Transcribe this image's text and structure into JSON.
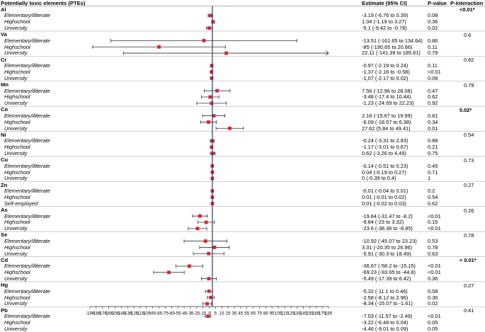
{
  "headers": {
    "elements": "Potentially toxic elements (PTEs)",
    "estimate": "Estimate (95% CI)",
    "pvalue": "P-value",
    "pinteraction": "P-Interaction"
  },
  "chart_data": {
    "type": "forest",
    "xlim": [
      -195,
      185
    ],
    "xticks": [
      "-195",
      "-185",
      "-175",
      "-165",
      "-155",
      "-145",
      "-135",
      "-125",
      "-115",
      "-105",
      "-95",
      "-85",
      "-75",
      "-65",
      "-55",
      "-45",
      "-35",
      "-25",
      "-15",
      "-5",
      "5",
      "15",
      "25",
      "35",
      "45",
      "55",
      "65",
      "75",
      "85",
      "95",
      "105",
      "115",
      "125",
      "135",
      "145",
      "155",
      "165",
      "175",
      "185"
    ],
    "reference_line": 0,
    "marker_color": "#d62728",
    "line_color": "#333333",
    "reference_color": "#1f3a8a",
    "groups": [
      {
        "element": "Al",
        "p_interaction": "<0.01*",
        "bold": true,
        "rows": [
          {
            "level": "Elementary/illiterate",
            "est": -3.19,
            "lo": -6.76,
            "hi": 0.39,
            "estimate_text": "-3.19 (-6.76 to 0.39)",
            "p": "0.08"
          },
          {
            "level": "Highschool",
            "est": 1.04,
            "lo": -1.19,
            "hi": 3.27,
            "estimate_text": "1.04 (-1.19 to 3.27)",
            "p": "0.36"
          },
          {
            "level": "University",
            "est": -5.1,
            "lo": -9.42,
            "hi": -0.78,
            "estimate_text": "-5.1 (-9.42 to -0.78)",
            "p": "0.02"
          }
        ]
      },
      {
        "element": "Va",
        "p_interaction": "0.6",
        "bold": false,
        "rows": [
          {
            "level": "Elementary/illiterate",
            "est": -13.51,
            "lo": -161.65,
            "hi": 134.64,
            "estimate_text": "-13.51 (-161.65 to 134.64)",
            "p": "0.86"
          },
          {
            "level": "Highschool",
            "est": -85,
            "lo": -190.65,
            "hi": 20.66,
            "estimate_text": "-85 (-190.65 to 20.66)",
            "p": "0.11"
          },
          {
            "level": "University",
            "est": 22.11,
            "lo": -141.39,
            "hi": 185.61,
            "estimate_text": "22.11 (-141.39 to 185.61)",
            "p": "0.79"
          }
        ]
      },
      {
        "element": "Cr",
        "p_interaction": "0.82",
        "bold": false,
        "rows": [
          {
            "level": "Elementary/illiterate",
            "est": -0.97,
            "lo": -2.19,
            "hi": 0.24,
            "estimate_text": "-0.97 (-2.19 to 0.24)",
            "p": "0.11"
          },
          {
            "level": "Highschool",
            "est": -1.37,
            "lo": -2.16,
            "hi": -0.58,
            "estimate_text": "-1.37 (-2.16 to -0.58)",
            "p": "<0.01"
          },
          {
            "level": "University",
            "est": -1.07,
            "lo": -2.17,
            "hi": 0.02,
            "estimate_text": "-1,07 (-2.17 to 0.02)",
            "p": "0.06"
          }
        ]
      },
      {
        "element": "Mn",
        "p_interaction": "0.79",
        "bold": false,
        "rows": [
          {
            "level": "Elementary/illiterate",
            "est": 7.56,
            "lo": -12.96,
            "hi": 28.08,
            "estimate_text": "7.56 (-12.96 to 28.08)",
            "p": "0.47"
          },
          {
            "level": "Highschool",
            "est": -3.48,
            "lo": -17.4,
            "hi": 10.44,
            "estimate_text": "-3.48 (-17.4 to 10.44)",
            "p": "0.62"
          },
          {
            "level": "University",
            "est": -1.23,
            "lo": -24.69,
            "hi": 22.23,
            "estimate_text": "-1.23 (-24.69 to 22.23)",
            "p": "0.92"
          }
        ]
      },
      {
        "element": "Co",
        "p_interaction": "0.02*",
        "bold": true,
        "rows": [
          {
            "level": "Elementary/illiterate",
            "est": 2.16,
            "lo": -15.67,
            "hi": 19.99,
            "estimate_text": "2.16 (-15.67 to 19.99)",
            "p": "0.81"
          },
          {
            "level": "Highschool",
            "est": -6.09,
            "lo": -18.57,
            "hi": 6.38,
            "estimate_text": "-6.09 (-18.57 to 6.38)",
            "p": "0.34"
          },
          {
            "level": "University",
            "est": 27.62,
            "lo": 5.84,
            "hi": 49.41,
            "estimate_text": "27.62 (5.84 to 49.41)",
            "p": "0.01"
          }
        ]
      },
      {
        "element": "Ni",
        "p_interaction": "0.54",
        "bold": false,
        "rows": [
          {
            "level": "Elementary/illiterate",
            "est": -0.24,
            "lo": -3.31,
            "hi": 2.83,
            "estimate_text": "-0.24 (-3.31 to 2.83)",
            "p": "0.88"
          },
          {
            "level": "Highschool",
            "est": -1.17,
            "lo": -3.01,
            "hi": 0.67,
            "estimate_text": "-1.17 (-3.01 to 0.67)",
            "p": "0.21"
          },
          {
            "level": "University",
            "est": 0.62,
            "lo": -3.26,
            "hi": 4.49,
            "estimate_text": "0.62 (-3.26 to 4.49)",
            "p": "0.75"
          }
        ]
      },
      {
        "element": "Cu",
        "p_interaction": "0.73",
        "bold": false,
        "rows": [
          {
            "level": "Elementary/illiterate",
            "est": -0.14,
            "lo": -0.51,
            "hi": 0.23,
            "estimate_text": "-0.14 (-0.51 to 0.23)",
            "p": "0.45"
          },
          {
            "level": "Highschool",
            "est": 0.04,
            "lo": -0.19,
            "hi": 0.27,
            "estimate_text": "0.04 (-0.19 to 0.27)",
            "p": "0.71"
          },
          {
            "level": "University",
            "est": 0,
            "lo": -0.39,
            "hi": 0.4,
            "estimate_text": "0 (-0.39 to 0.4)",
            "p": "1"
          }
        ]
      },
      {
        "element": "Zn",
        "p_interaction": "0.27",
        "bold": false,
        "rows": [
          {
            "level": "Elementary/illiterate",
            "est": -0.01,
            "lo": -0.04,
            "hi": 0.01,
            "estimate_text": "-0.01 (-0.04 to 0.01)",
            "p": "0.2"
          },
          {
            "level": "Highschool",
            "est": 0.01,
            "lo": -0.01,
            "hi": 0.02,
            "estimate_text": "0.01 (-0.01 to 0.02)",
            "p": "0.54"
          },
          {
            "level": "Self-employed",
            "est": 0.01,
            "lo": -0.02,
            "hi": 0.03,
            "estimate_text": "0.01 (-0.02 to 0.03)",
            "p": "0.62"
          }
        ]
      },
      {
        "element": "As",
        "p_interaction": "0.26",
        "bold": false,
        "rows": [
          {
            "level": "Elementary/illiterate",
            "est": -19.84,
            "lo": -31.47,
            "hi": -8.2,
            "estimate_text": "-19.84 (-31.47 to -8.2)",
            "p": "<0.01"
          },
          {
            "level": "Highschool",
            "est": -9.84,
            "lo": -23,
            "hi": 3.32,
            "estimate_text": "-9.84 (-23 to 3.32)",
            "p": "0.15"
          },
          {
            "level": "University",
            "est": -23.6,
            "lo": -38.36,
            "hi": -8.85,
            "estimate_text": "-23.6 (-38.36 to -8.85)",
            "p": "<0.01"
          }
        ]
      },
      {
        "element": "Se",
        "p_interaction": "0.78",
        "bold": false,
        "rows": [
          {
            "level": "Elementary/illiterate",
            "est": -10.92,
            "lo": -45.07,
            "hi": 23.23,
            "estimate_text": "-10.92 (-45.07 to 23.23)",
            "p": "0.53"
          },
          {
            "level": "Highschool",
            "est": 3.31,
            "lo": -20.35,
            "hi": 26.96,
            "estimate_text": "3.31 (-20.35 to 26.96)",
            "p": "0.78"
          },
          {
            "level": "University",
            "est": -5.91,
            "lo": -30.3,
            "hi": 18.49,
            "estimate_text": "-5.91 (-30.3 to 18.49)",
            "p": "0.63"
          }
        ]
      },
      {
        "element": "Cd",
        "p_interaction": "< 0.01*",
        "bold": true,
        "rows": [
          {
            "level": "Elementary/illiterate",
            "est": -36.67,
            "lo": -58.2,
            "hi": -15.15,
            "estimate_text": "-36.67 (-58.2 to -15.15)",
            "p": "<0.01"
          },
          {
            "level": "Highschool",
            "est": -69.23,
            "lo": -93.65,
            "hi": -44.8,
            "estimate_text": "-69.23 (-93.65 to -44.8)",
            "p": "<0.01"
          },
          {
            "level": "University",
            "est": -5.49,
            "lo": -17.39,
            "hi": 6.42,
            "estimate_text": "-5.49 (-17.39 to 6.42)",
            "p": "0.36"
          }
        ]
      },
      {
        "element": "Hg",
        "p_interaction": "0.27",
        "bold": false,
        "rows": [
          {
            "level": "Elementary/illiterate",
            "est": -5.32,
            "lo": -11.1,
            "hi": 0.46,
            "estimate_text": "-5.32 (-11.1 to 0.46)",
            "p": "0.08"
          },
          {
            "level": "Highschool",
            "est": -2.58,
            "lo": -8.12,
            "hi": 2.96,
            "estimate_text": "-2.58 (-8.12 to 2.96)",
            "p": "0.36"
          },
          {
            "level": "University",
            "est": -8.34,
            "lo": -15.07,
            "hi": -1.61,
            "estimate_text": "-8.34 (-15.07 to -1.61)",
            "p": "0.02"
          }
        ]
      },
      {
        "element": "Pb",
        "p_interaction": "0.41",
        "bold": false,
        "rows": [
          {
            "level": "Elementary/illiterate",
            "est": -7.03,
            "lo": -11.57,
            "hi": -2.49,
            "estimate_text": "-7.03 (-11.57 to -2.49)",
            "p": "<0.01"
          },
          {
            "level": "Highschool",
            "est": -3.22,
            "lo": -6.48,
            "hi": 0.04,
            "estimate_text": "-3.22 (-6.48 to 0.04)",
            "p": "0.05"
          },
          {
            "level": "University",
            "est": -4.46,
            "lo": -9.01,
            "hi": 0.09,
            "estimate_text": "-4.46 (-9.01 to 0.09)",
            "p": "0.05"
          }
        ]
      }
    ]
  }
}
